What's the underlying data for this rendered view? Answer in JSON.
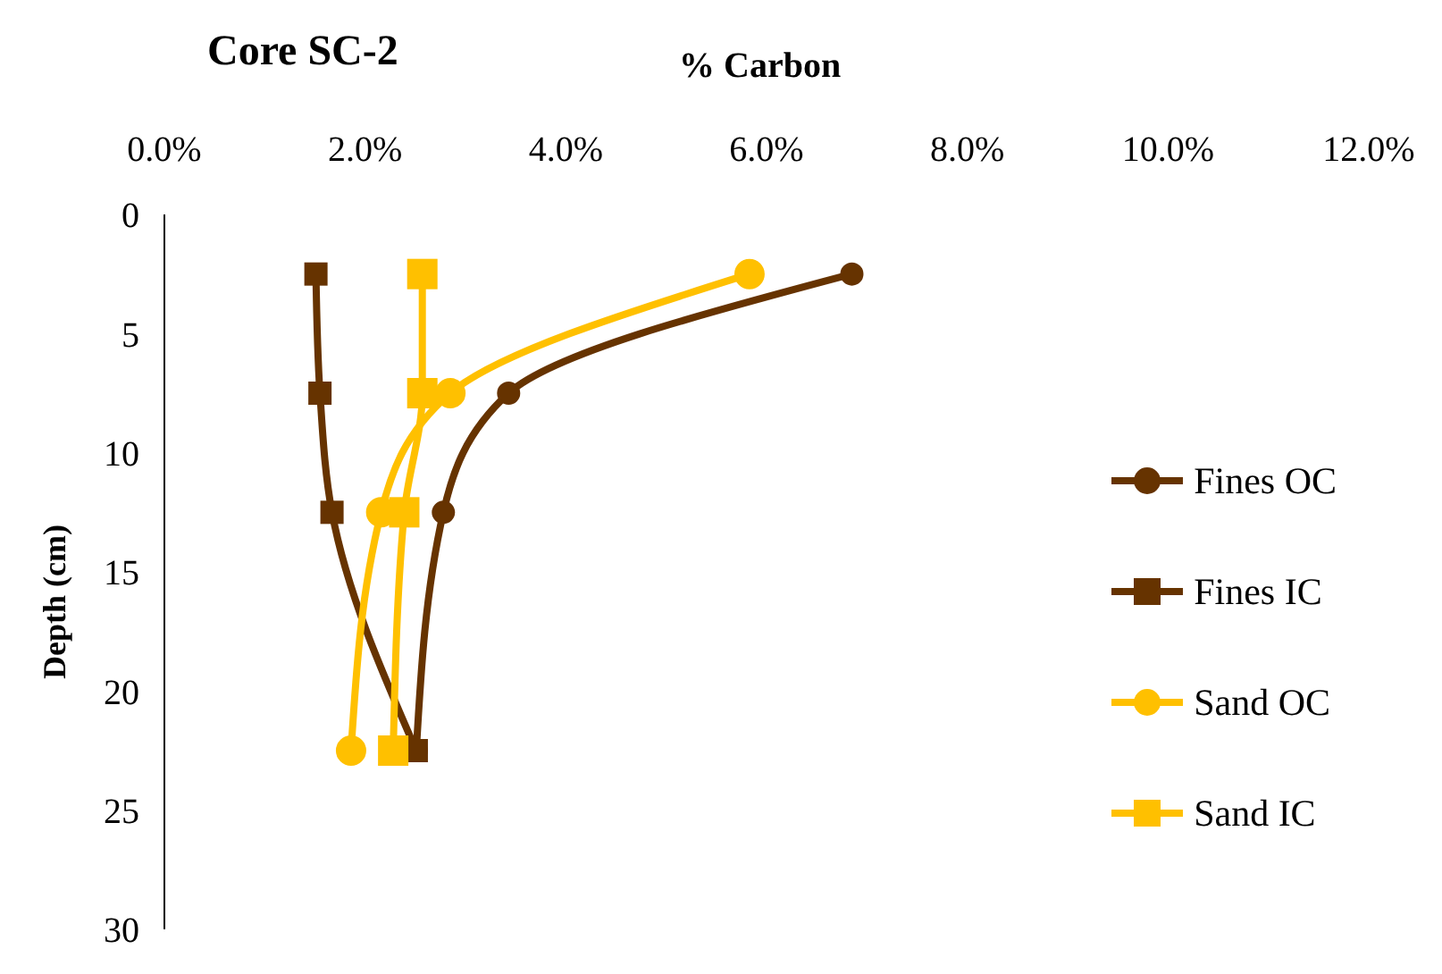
{
  "chart_data": {
    "type": "line",
    "title": "Core SC-2",
    "xlabel": "% Carbon",
    "ylabel": "Depth  (cm)",
    "xlim": [
      0,
      12
    ],
    "xticks": [
      {
        "value": 0,
        "label": "0.0%"
      },
      {
        "value": 2,
        "label": "2.0%"
      },
      {
        "value": 4,
        "label": "4.0%"
      },
      {
        "value": 6,
        "label": "6.0%"
      },
      {
        "value": 8,
        "label": "8.0%"
      },
      {
        "value": 10,
        "label": "10.0%"
      },
      {
        "value": 12,
        "label": "12.0%"
      }
    ],
    "ylim": [
      30,
      0
    ],
    "yticks": [
      0,
      5,
      10,
      15,
      20,
      25,
      30
    ],
    "grid": false,
    "legend": "right",
    "line_style": "solid",
    "series": [
      {
        "name": "Fines OC",
        "color": "#663300",
        "marker": "circle",
        "x": [
          6.85,
          3.43,
          2.78,
          2.51
        ],
        "values": [
          2.5,
          7.5,
          12.5,
          22.5
        ]
      },
      {
        "name": "Fines IC",
        "color": "#663300",
        "marker": "square",
        "x": [
          1.51,
          1.55,
          1.67,
          2.51
        ],
        "values": [
          2.5,
          7.5,
          12.5,
          22.5
        ]
      },
      {
        "name": "Sand OC",
        "color": "#ffc000",
        "marker": "circle",
        "x": [
          5.83,
          2.85,
          2.16,
          1.86
        ],
        "values": [
          2.5,
          7.5,
          12.5,
          22.5
        ]
      },
      {
        "name": "Sand IC",
        "color": "#ffc000",
        "marker": "square",
        "x": [
          2.57,
          2.57,
          2.39,
          2.28
        ],
        "values": [
          2.5,
          7.5,
          12.5,
          22.5
        ]
      }
    ]
  }
}
